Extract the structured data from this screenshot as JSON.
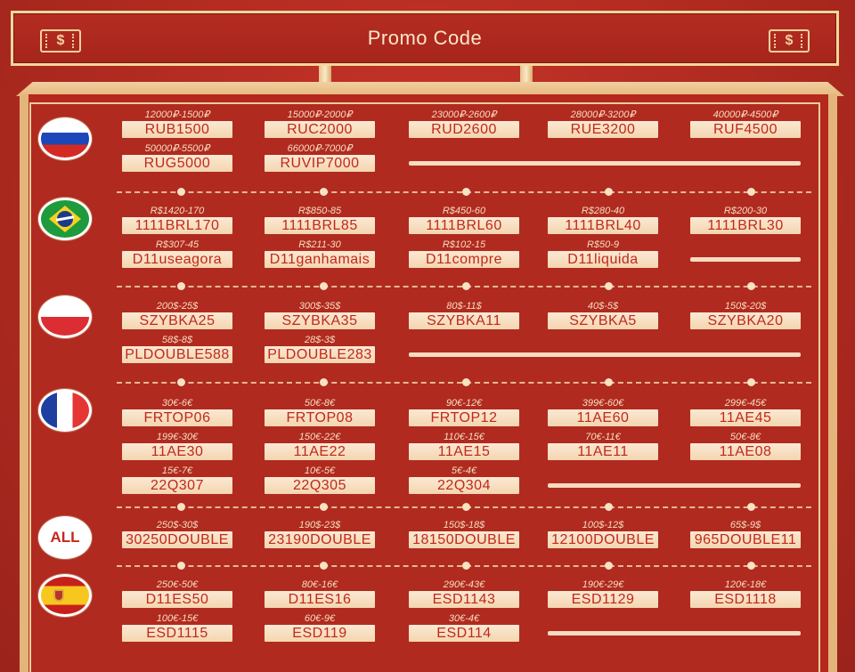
{
  "header": {
    "title": "Promo Code",
    "ticket_symbol": "$"
  },
  "sections": [
    {
      "flag": "russia-flag-icon",
      "rows": [
        [
          {
            "cond": "12000₽-1500₽",
            "code": "RUB1500"
          },
          {
            "cond": "15000₽-2000₽",
            "code": "RUC2000"
          },
          {
            "cond": "23000₽-2600₽",
            "code": "RUD2600"
          },
          {
            "cond": "28000₽-3200₽",
            "code": "RUE3200"
          },
          {
            "cond": "40000₽-4500₽",
            "code": "RUF4500"
          }
        ],
        [
          {
            "cond": "50000₽-5500₽",
            "code": "RUG5000"
          },
          {
            "cond": "66000₽-7000₽",
            "code": "RUVIP7000"
          }
        ]
      ]
    },
    {
      "flag": "brazil-flag-icon",
      "rows": [
        [
          {
            "cond": "R$1420-170",
            "code": "1111BRL170"
          },
          {
            "cond": "R$850-85",
            "code": "1111BRL85"
          },
          {
            "cond": "R$450-60",
            "code": "1111BRL60"
          },
          {
            "cond": "R$280-40",
            "code": "1111BRL40"
          },
          {
            "cond": "R$200-30",
            "code": "1111BRL30"
          }
        ],
        [
          {
            "cond": "R$307-45",
            "code": "D11useagora"
          },
          {
            "cond": "R$211-30",
            "code": "D11ganhamais"
          },
          {
            "cond": "R$102-15",
            "code": "D11compre"
          },
          {
            "cond": "R$50-9",
            "code": "D11liquida"
          }
        ]
      ]
    },
    {
      "flag": "poland-flag-icon",
      "rows": [
        [
          {
            "cond": "200$-25$",
            "code": "SZYBKA25"
          },
          {
            "cond": "300$-35$",
            "code": "SZYBKA35"
          },
          {
            "cond": "80$-11$",
            "code": "SZYBKA11"
          },
          {
            "cond": "40$-5$",
            "code": "SZYBKA5"
          },
          {
            "cond": "150$-20$",
            "code": "SZYBKA20"
          }
        ],
        [
          {
            "cond": "58$-8$",
            "code": "PLDOUBLE588"
          },
          {
            "cond": "28$-3$",
            "code": "PLDOUBLE283"
          }
        ]
      ]
    },
    {
      "flag": "france-flag-icon",
      "rows": [
        [
          {
            "cond": "30€-6€",
            "code": "FRTOP06"
          },
          {
            "cond": "50€-8€",
            "code": "FRTOP08"
          },
          {
            "cond": "90€-12€",
            "code": "FRTOP12"
          },
          {
            "cond": "399€-60€",
            "code": "11AE60"
          },
          {
            "cond": "299€-45€",
            "code": "11AE45"
          }
        ],
        [
          {
            "cond": "199€-30€",
            "code": "11AE30"
          },
          {
            "cond": "150€-22€",
            "code": "11AE22"
          },
          {
            "cond": "110€-15€",
            "code": "11AE15"
          },
          {
            "cond": "70€-11€",
            "code": "11AE11"
          },
          {
            "cond": "50€-8€",
            "code": "11AE08"
          }
        ],
        [
          {
            "cond": "15€-7€",
            "code": "22Q307"
          },
          {
            "cond": "10€-5€",
            "code": "22Q305"
          },
          {
            "cond": "5€-4€",
            "code": "22Q304"
          }
        ]
      ]
    },
    {
      "flag": "ALL",
      "rows": [
        [
          {
            "cond": "250$-30$",
            "code": "30250DOUBLE"
          },
          {
            "cond": "190$-23$",
            "code": "23190DOUBLE"
          },
          {
            "cond": "150$-18$",
            "code": "18150DOUBLE"
          },
          {
            "cond": "100$-12$",
            "code": "12100DOUBLE"
          },
          {
            "cond": "65$-9$",
            "code": "965DOUBLE11"
          }
        ]
      ]
    },
    {
      "flag": "spain-flag-icon",
      "rows": [
        [
          {
            "cond": "250€-50€",
            "code": "D11ES50"
          },
          {
            "cond": "80€-16€",
            "code": "D11ES16"
          },
          {
            "cond": "290€-43€",
            "code": "ESD1143"
          },
          {
            "cond": "190€-29€",
            "code": "ESD1129"
          },
          {
            "cond": "120€-18€",
            "code": "ESD1118"
          }
        ],
        [
          {
            "cond": "100€-15€",
            "code": "ESD1115"
          },
          {
            "cond": "60€-9€",
            "code": "ESD119"
          },
          {
            "cond": "30€-4€",
            "code": "ESD114"
          }
        ]
      ]
    }
  ]
}
